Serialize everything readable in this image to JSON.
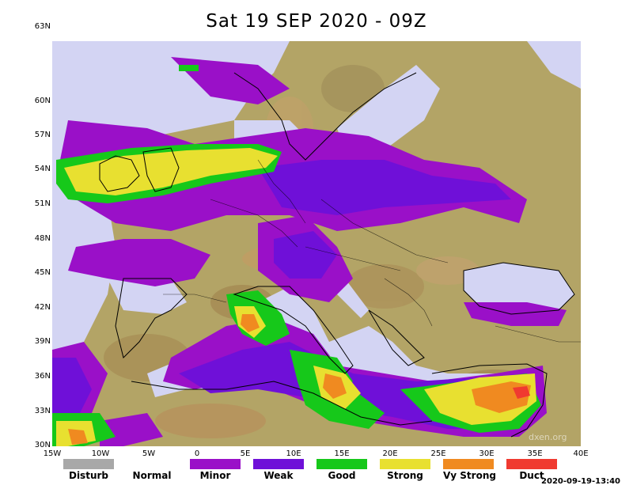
{
  "title": "Sat 19 SEP 2020 - 09Z",
  "lat_labels": [
    "63N",
    "60N",
    "57N",
    "54N",
    "51N",
    "48N",
    "45N",
    "42N",
    "39N",
    "36N",
    "33N",
    "30N"
  ],
  "lon_labels": [
    "15W",
    "10W",
    "5W",
    "0",
    "5E",
    "10E",
    "15E",
    "20E",
    "25E",
    "30E",
    "35E",
    "40E"
  ],
  "legend": [
    {
      "label": "Disturb",
      "color": "#a8a8a8"
    },
    {
      "label": "Normal",
      "color": "#ffffff"
    },
    {
      "label": "Minor",
      "color": "#9a10c8"
    },
    {
      "label": "Weak",
      "color": "#6f10d8"
    },
    {
      "label": "Good",
      "color": "#16c81a"
    },
    {
      "label": "Strong",
      "color": "#e8e030"
    },
    {
      "label": "Vy Strong",
      "color": "#f08a20"
    },
    {
      "label": "Duct",
      "color": "#f03a30"
    }
  ],
  "timestamp": "2020-09-19-13:40",
  "watermark": "dxen.org",
  "colors": {
    "land": "#b3a466",
    "sea": "#d3d4f3",
    "minor": "#9a10c8",
    "weak": "#6f10d8",
    "good": "#16c81a",
    "strong": "#e8e030",
    "vystrong": "#f08a20",
    "duct": "#f03a30"
  }
}
